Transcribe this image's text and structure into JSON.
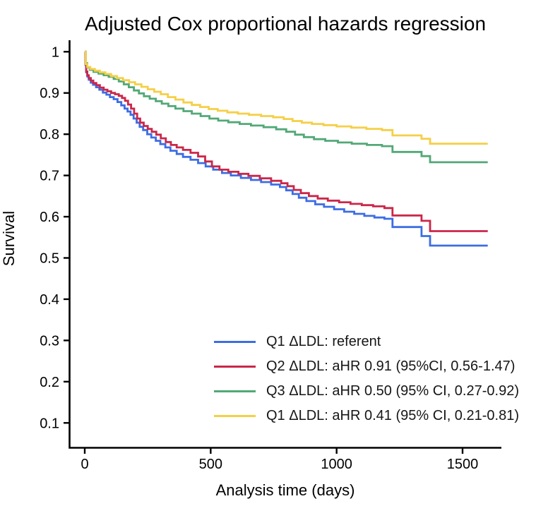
{
  "page": {
    "background": "#ffffff",
    "axis_color": "#000000"
  },
  "chart_data": {
    "type": "line",
    "variant": "kaplan-meier-step",
    "title": "Adjusted Cox proportional hazards regression",
    "xlabel": "Analysis time (days)",
    "ylabel": "Survival",
    "grid": false,
    "legend_position": "inside-lower-right",
    "xlim": [
      0,
      1655
    ],
    "ylim": [
      0.07,
      1.02
    ],
    "x_ticks": [
      {
        "v": 0,
        "label": "0"
      },
      {
        "v": 500,
        "label": "500"
      },
      {
        "v": 1000,
        "label": "1000"
      },
      {
        "v": 1500,
        "label": "1500"
      }
    ],
    "y_ticks": [
      {
        "v": 1.0,
        "label": "1"
      },
      {
        "v": 0.9,
        "label": "0.9"
      },
      {
        "v": 0.8,
        "label": "0.8"
      },
      {
        "v": 0.7,
        "label": "0.7"
      },
      {
        "v": 0.6,
        "label": "0.6"
      },
      {
        "v": 0.5,
        "label": "0.5"
      },
      {
        "v": 0.4,
        "label": "0.4"
      },
      {
        "v": 0.3,
        "label": "0.3"
      },
      {
        "v": 0.2,
        "label": "0.2"
      },
      {
        "v": 0.1,
        "label": "0.1"
      }
    ],
    "series": [
      {
        "name": "Q1 ΔLDL: referent",
        "color": "#3d6de3",
        "points": [
          [
            0,
            1.0
          ],
          [
            3,
            0.968
          ],
          [
            6,
            0.95
          ],
          [
            10,
            0.94
          ],
          [
            16,
            0.932
          ],
          [
            24,
            0.925
          ],
          [
            33,
            0.92
          ],
          [
            45,
            0.914
          ],
          [
            58,
            0.908
          ],
          [
            72,
            0.901
          ],
          [
            86,
            0.896
          ],
          [
            100,
            0.89
          ],
          [
            115,
            0.885
          ],
          [
            130,
            0.878
          ],
          [
            145,
            0.87
          ],
          [
            158,
            0.862
          ],
          [
            170,
            0.855
          ],
          [
            182,
            0.847
          ],
          [
            194,
            0.838
          ],
          [
            206,
            0.828
          ],
          [
            218,
            0.818
          ],
          [
            232,
            0.81
          ],
          [
            248,
            0.8
          ],
          [
            264,
            0.792
          ],
          [
            282,
            0.784
          ],
          [
            300,
            0.776
          ],
          [
            320,
            0.768
          ],
          [
            340,
            0.76
          ],
          [
            365,
            0.752
          ],
          [
            390,
            0.745
          ],
          [
            420,
            0.738
          ],
          [
            450,
            0.73
          ],
          [
            480,
            0.722
          ],
          [
            510,
            0.714
          ],
          [
            545,
            0.706
          ],
          [
            580,
            0.7
          ],
          [
            620,
            0.694
          ],
          [
            660,
            0.689
          ],
          [
            700,
            0.684
          ],
          [
            740,
            0.678
          ],
          [
            775,
            0.672
          ],
          [
            800,
            0.664
          ],
          [
            825,
            0.655
          ],
          [
            850,
            0.646
          ],
          [
            880,
            0.638
          ],
          [
            915,
            0.63
          ],
          [
            950,
            0.624
          ],
          [
            990,
            0.618
          ],
          [
            1030,
            0.612
          ],
          [
            1070,
            0.607
          ],
          [
            1110,
            0.602
          ],
          [
            1150,
            0.598
          ],
          [
            1190,
            0.595
          ],
          [
            1222,
            0.575
          ],
          [
            1337,
            0.553
          ],
          [
            1371,
            0.53
          ],
          [
            1600,
            0.53
          ]
        ]
      },
      {
        "name": "Q2 ΔLDL: aHR 0.91 (95%CI, 0.56-1.47)",
        "color": "#cb2649",
        "points": [
          [
            0,
            1.0
          ],
          [
            3,
            0.97
          ],
          [
            6,
            0.952
          ],
          [
            10,
            0.943
          ],
          [
            16,
            0.936
          ],
          [
            24,
            0.93
          ],
          [
            34,
            0.924
          ],
          [
            46,
            0.919
          ],
          [
            60,
            0.913
          ],
          [
            75,
            0.908
          ],
          [
            90,
            0.904
          ],
          [
            105,
            0.9
          ],
          [
            120,
            0.897
          ],
          [
            135,
            0.893
          ],
          [
            148,
            0.888
          ],
          [
            160,
            0.881
          ],
          [
            172,
            0.872
          ],
          [
            184,
            0.862
          ],
          [
            196,
            0.85
          ],
          [
            208,
            0.838
          ],
          [
            220,
            0.828
          ],
          [
            234,
            0.82
          ],
          [
            250,
            0.813
          ],
          [
            266,
            0.806
          ],
          [
            284,
            0.799
          ],
          [
            302,
            0.79
          ],
          [
            322,
            0.781
          ],
          [
            342,
            0.774
          ],
          [
            365,
            0.768
          ],
          [
            390,
            0.762
          ],
          [
            420,
            0.755
          ],
          [
            450,
            0.746
          ],
          [
            478,
            0.734
          ],
          [
            505,
            0.722
          ],
          [
            535,
            0.714
          ],
          [
            570,
            0.709
          ],
          [
            610,
            0.704
          ],
          [
            650,
            0.699
          ],
          [
            695,
            0.693
          ],
          [
            740,
            0.687
          ],
          [
            780,
            0.681
          ],
          [
            805,
            0.674
          ],
          [
            830,
            0.665
          ],
          [
            858,
            0.657
          ],
          [
            890,
            0.65
          ],
          [
            925,
            0.644
          ],
          [
            965,
            0.639
          ],
          [
            1010,
            0.635
          ],
          [
            1055,
            0.631
          ],
          [
            1100,
            0.628
          ],
          [
            1145,
            0.625
          ],
          [
            1190,
            0.621
          ],
          [
            1222,
            0.603
          ],
          [
            1337,
            0.59
          ],
          [
            1371,
            0.565
          ],
          [
            1600,
            0.565
          ]
        ]
      },
      {
        "name": "Q3 ΔLDL: aHR 0.50 (95% CI, 0.27-0.92)",
        "color": "#52a877",
        "points": [
          [
            0,
            1.0
          ],
          [
            4,
            0.972
          ],
          [
            10,
            0.962
          ],
          [
            20,
            0.956
          ],
          [
            35,
            0.951
          ],
          [
            55,
            0.947
          ],
          [
            75,
            0.943
          ],
          [
            95,
            0.939
          ],
          [
            115,
            0.934
          ],
          [
            135,
            0.928
          ],
          [
            155,
            0.921
          ],
          [
            175,
            0.914
          ],
          [
            195,
            0.906
          ],
          [
            215,
            0.899
          ],
          [
            235,
            0.892
          ],
          [
            258,
            0.886
          ],
          [
            282,
            0.88
          ],
          [
            306,
            0.874
          ],
          [
            332,
            0.868
          ],
          [
            360,
            0.862
          ],
          [
            392,
            0.856
          ],
          [
            425,
            0.85
          ],
          [
            460,
            0.844
          ],
          [
            495,
            0.838
          ],
          [
            530,
            0.833
          ],
          [
            570,
            0.829
          ],
          [
            615,
            0.825
          ],
          [
            660,
            0.821
          ],
          [
            710,
            0.817
          ],
          [
            760,
            0.812
          ],
          [
            800,
            0.806
          ],
          [
            835,
            0.799
          ],
          [
            870,
            0.793
          ],
          [
            910,
            0.788
          ],
          [
            955,
            0.784
          ],
          [
            1005,
            0.78
          ],
          [
            1060,
            0.777
          ],
          [
            1120,
            0.774
          ],
          [
            1180,
            0.771
          ],
          [
            1222,
            0.757
          ],
          [
            1337,
            0.747
          ],
          [
            1371,
            0.732
          ],
          [
            1600,
            0.732
          ]
        ]
      },
      {
        "name": "Q1 ΔLDL: aHR 0.41 (95% CI, 0.21-0.81)",
        "color": "#f5cf47",
        "points": [
          [
            0,
            1.0
          ],
          [
            4,
            0.97
          ],
          [
            10,
            0.963
          ],
          [
            22,
            0.958
          ],
          [
            40,
            0.954
          ],
          [
            60,
            0.95
          ],
          [
            82,
            0.946
          ],
          [
            105,
            0.941
          ],
          [
            128,
            0.936
          ],
          [
            152,
            0.931
          ],
          [
            176,
            0.926
          ],
          [
            200,
            0.921
          ],
          [
            225,
            0.915
          ],
          [
            250,
            0.909
          ],
          [
            276,
            0.903
          ],
          [
            302,
            0.897
          ],
          [
            330,
            0.89
          ],
          [
            360,
            0.884
          ],
          [
            392,
            0.877
          ],
          [
            425,
            0.871
          ],
          [
            458,
            0.866
          ],
          [
            492,
            0.861
          ],
          [
            528,
            0.857
          ],
          [
            566,
            0.853
          ],
          [
            608,
            0.85
          ],
          [
            652,
            0.847
          ],
          [
            700,
            0.844
          ],
          [
            748,
            0.841
          ],
          [
            790,
            0.837
          ],
          [
            825,
            0.832
          ],
          [
            862,
            0.828
          ],
          [
            902,
            0.825
          ],
          [
            948,
            0.822
          ],
          [
            1000,
            0.819
          ],
          [
            1058,
            0.816
          ],
          [
            1118,
            0.813
          ],
          [
            1180,
            0.81
          ],
          [
            1222,
            0.797
          ],
          [
            1337,
            0.789
          ],
          [
            1371,
            0.777
          ],
          [
            1600,
            0.777
          ]
        ]
      }
    ]
  }
}
